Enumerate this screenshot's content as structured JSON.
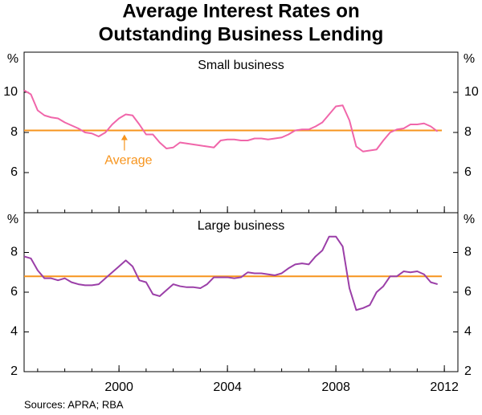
{
  "title_lines": [
    "Average Interest Rates on",
    "Outstanding Business Lending"
  ],
  "source": "Sources: APRA; RBA",
  "chart_data": [
    {
      "type": "line",
      "panel_title": "Small business",
      "y_unit": "%",
      "xlim": [
        1996.5,
        2012.5
      ],
      "xticks": [
        2000,
        2004,
        2008,
        2012
      ],
      "ylim": [
        4,
        12
      ],
      "yticks": [
        6,
        8,
        10
      ],
      "x": [
        1996.5,
        1996.75,
        1997,
        1997.25,
        1997.5,
        1997.75,
        1998,
        1998.25,
        1998.5,
        1998.75,
        1999,
        1999.25,
        1999.5,
        1999.75,
        2000,
        2000.25,
        2000.5,
        2000.75,
        2001,
        2001.25,
        2001.5,
        2001.75,
        2002,
        2002.25,
        2002.5,
        2002.75,
        2003,
        2003.25,
        2003.5,
        2003.75,
        2004,
        2004.25,
        2004.5,
        2004.75,
        2005,
        2005.25,
        2005.5,
        2005.75,
        2006,
        2006.25,
        2006.5,
        2006.75,
        2007,
        2007.25,
        2007.5,
        2007.75,
        2008,
        2008.25,
        2008.5,
        2008.75,
        2009,
        2009.25,
        2009.5,
        2009.75,
        2010,
        2010.25,
        2010.5,
        2010.75,
        2011,
        2011.25,
        2011.5,
        2011.75
      ],
      "series": [
        {
          "name": "Small business",
          "color": "#f066aa",
          "values": [
            10.1,
            9.9,
            9.1,
            8.85,
            8.75,
            8.7,
            8.5,
            8.35,
            8.2,
            8.0,
            7.95,
            7.8,
            8.0,
            8.4,
            8.7,
            8.9,
            8.85,
            8.4,
            7.9,
            7.9,
            7.5,
            7.2,
            7.25,
            7.5,
            7.45,
            7.4,
            7.35,
            7.3,
            7.25,
            7.6,
            7.65,
            7.65,
            7.6,
            7.6,
            7.7,
            7.7,
            7.65,
            7.7,
            7.75,
            7.9,
            8.1,
            8.15,
            8.15,
            8.3,
            8.5,
            8.9,
            9.3,
            9.35,
            8.6,
            7.3,
            7.05,
            7.1,
            7.15,
            7.6,
            8.0,
            8.15,
            8.2,
            8.4,
            8.4,
            8.45,
            8.3,
            8.05
          ]
        }
      ],
      "average": 8.1,
      "average_color": "#f7941d",
      "average_label": "Average"
    },
    {
      "type": "line",
      "panel_title": "Large business",
      "y_unit": "%",
      "xlim": [
        1996.5,
        2012.5
      ],
      "xticks": [
        2000,
        2004,
        2008,
        2012
      ],
      "ylim": [
        2,
        10
      ],
      "yticks": [
        2,
        4,
        6,
        8
      ],
      "x": [
        1996.5,
        1996.75,
        1997,
        1997.25,
        1997.5,
        1997.75,
        1998,
        1998.25,
        1998.5,
        1998.75,
        1999,
        1999.25,
        1999.5,
        1999.75,
        2000,
        2000.25,
        2000.5,
        2000.75,
        2001,
        2001.25,
        2001.5,
        2001.75,
        2002,
        2002.25,
        2002.5,
        2002.75,
        2003,
        2003.25,
        2003.5,
        2003.75,
        2004,
        2004.25,
        2004.5,
        2004.75,
        2005,
        2005.25,
        2005.5,
        2005.75,
        2006,
        2006.25,
        2006.5,
        2006.75,
        2007,
        2007.25,
        2007.5,
        2007.75,
        2008,
        2008.25,
        2008.5,
        2008.75,
        2009,
        2009.25,
        2009.5,
        2009.75,
        2010,
        2010.25,
        2010.5,
        2010.75,
        2011,
        2011.25,
        2011.5,
        2011.75
      ],
      "series": [
        {
          "name": "Large business",
          "color": "#9b3fa8",
          "values": [
            7.8,
            7.7,
            7.1,
            6.7,
            6.7,
            6.6,
            6.7,
            6.5,
            6.4,
            6.35,
            6.35,
            6.4,
            6.7,
            7.0,
            7.3,
            7.6,
            7.3,
            6.6,
            6.5,
            5.9,
            5.8,
            6.1,
            6.4,
            6.3,
            6.25,
            6.25,
            6.2,
            6.4,
            6.75,
            6.75,
            6.75,
            6.7,
            6.75,
            7.0,
            6.95,
            6.95,
            6.9,
            6.85,
            6.95,
            7.2,
            7.4,
            7.45,
            7.4,
            7.8,
            8.1,
            8.8,
            8.8,
            8.3,
            6.2,
            5.1,
            5.2,
            5.35,
            6.0,
            6.3,
            6.8,
            6.8,
            7.05,
            7.0,
            7.05,
            6.9,
            6.5,
            6.4
          ]
        }
      ],
      "average": 6.8,
      "average_color": "#f7941d"
    }
  ]
}
